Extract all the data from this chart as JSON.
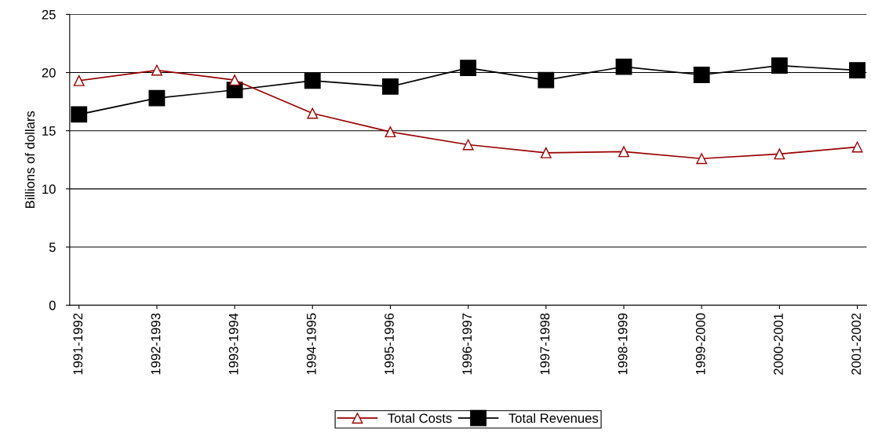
{
  "chart_data": {
    "type": "line",
    "ylabel": "Billions of dollars",
    "categories": [
      "1991-1992",
      "1992-1993",
      "1993-1994",
      "1994-1995",
      "1995-1996",
      "1996-1997",
      "1997-1998",
      "1998-1999",
      "1999-2000",
      "2000-2001",
      "2001-2002"
    ],
    "series": [
      {
        "name": "Total Costs",
        "color": "#990000",
        "marker": "triangle",
        "values": [
          19.3,
          20.2,
          19.35,
          16.5,
          14.9,
          13.8,
          13.1,
          13.2,
          12.6,
          13.0,
          13.6
        ]
      },
      {
        "name": "Total Revenues",
        "color": "#000000",
        "marker": "square",
        "values": [
          16.4,
          17.8,
          18.5,
          19.3,
          18.8,
          20.4,
          19.35,
          20.5,
          19.8,
          20.6,
          20.2
        ]
      }
    ],
    "ylim": [
      0,
      25
    ],
    "yticks": [
      0,
      5,
      10,
      15,
      20,
      25
    ],
    "grid": "y",
    "legend": "bottom",
    "line_style": "solid"
  }
}
